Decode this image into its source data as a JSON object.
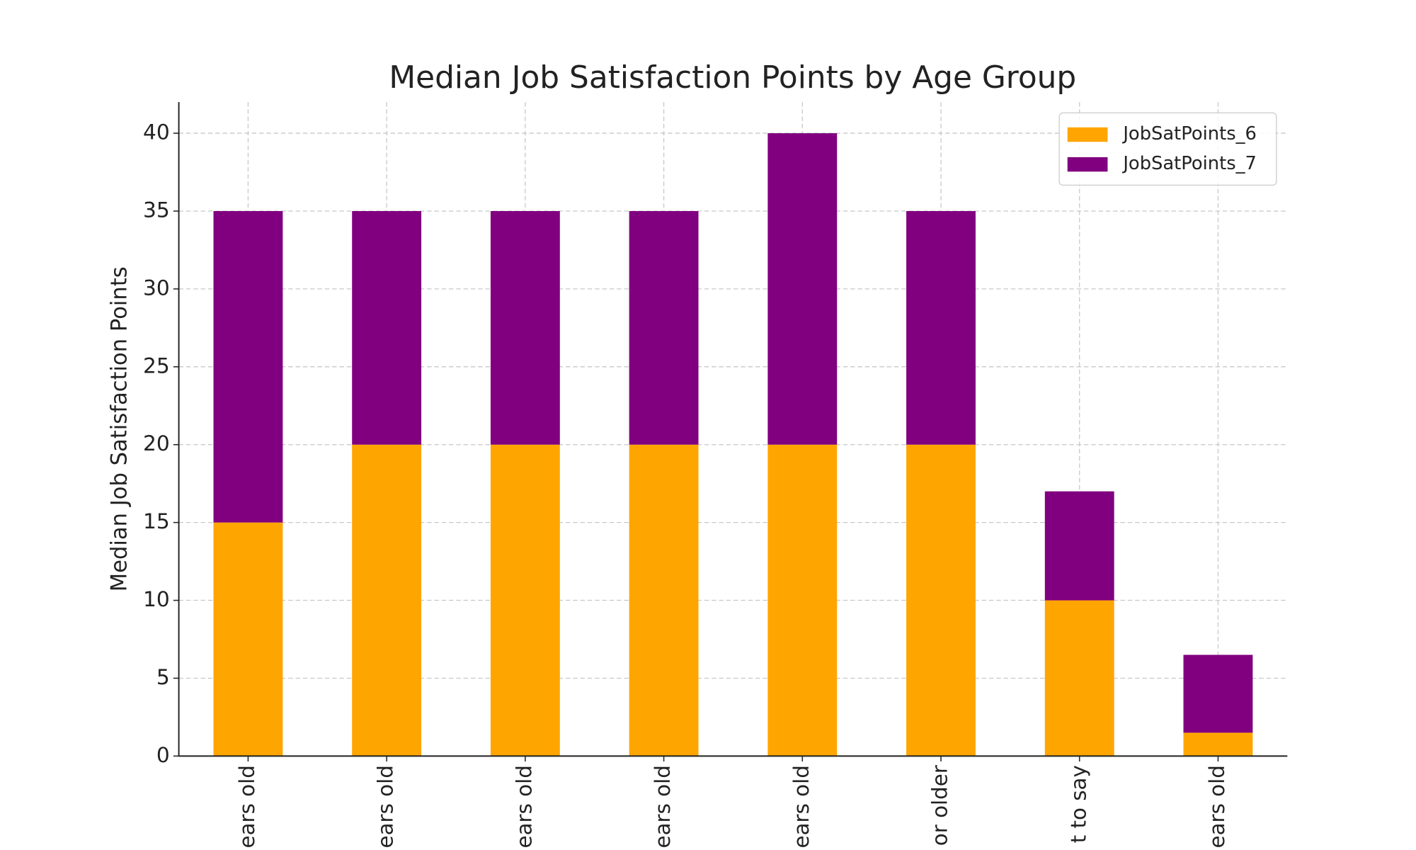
{
  "chart_data": {
    "type": "stacked-bar",
    "title": "Median Job Satisfaction Points by Age Group",
    "y_label": "Median Job Satisfaction Points",
    "categories": [
      "ears old",
      "ears old",
      "ears old",
      "ears old",
      "ears old",
      "or older",
      "t to say",
      "ears old"
    ],
    "series": [
      {
        "name": "JobSatPoints_6",
        "color": "#ffa500",
        "values": [
          15,
          20,
          20,
          20,
          20,
          20,
          10,
          1.5
        ]
      },
      {
        "name": "JobSatPoints_7",
        "color": "#800080",
        "values": [
          20,
          15,
          15,
          15,
          20,
          15,
          7,
          5
        ]
      }
    ],
    "ylim": [
      0,
      42
    ],
    "yticks": [
      0,
      5,
      10,
      15,
      20,
      25,
      30,
      35,
      40
    ],
    "grid": true,
    "legend": "upper right"
  }
}
